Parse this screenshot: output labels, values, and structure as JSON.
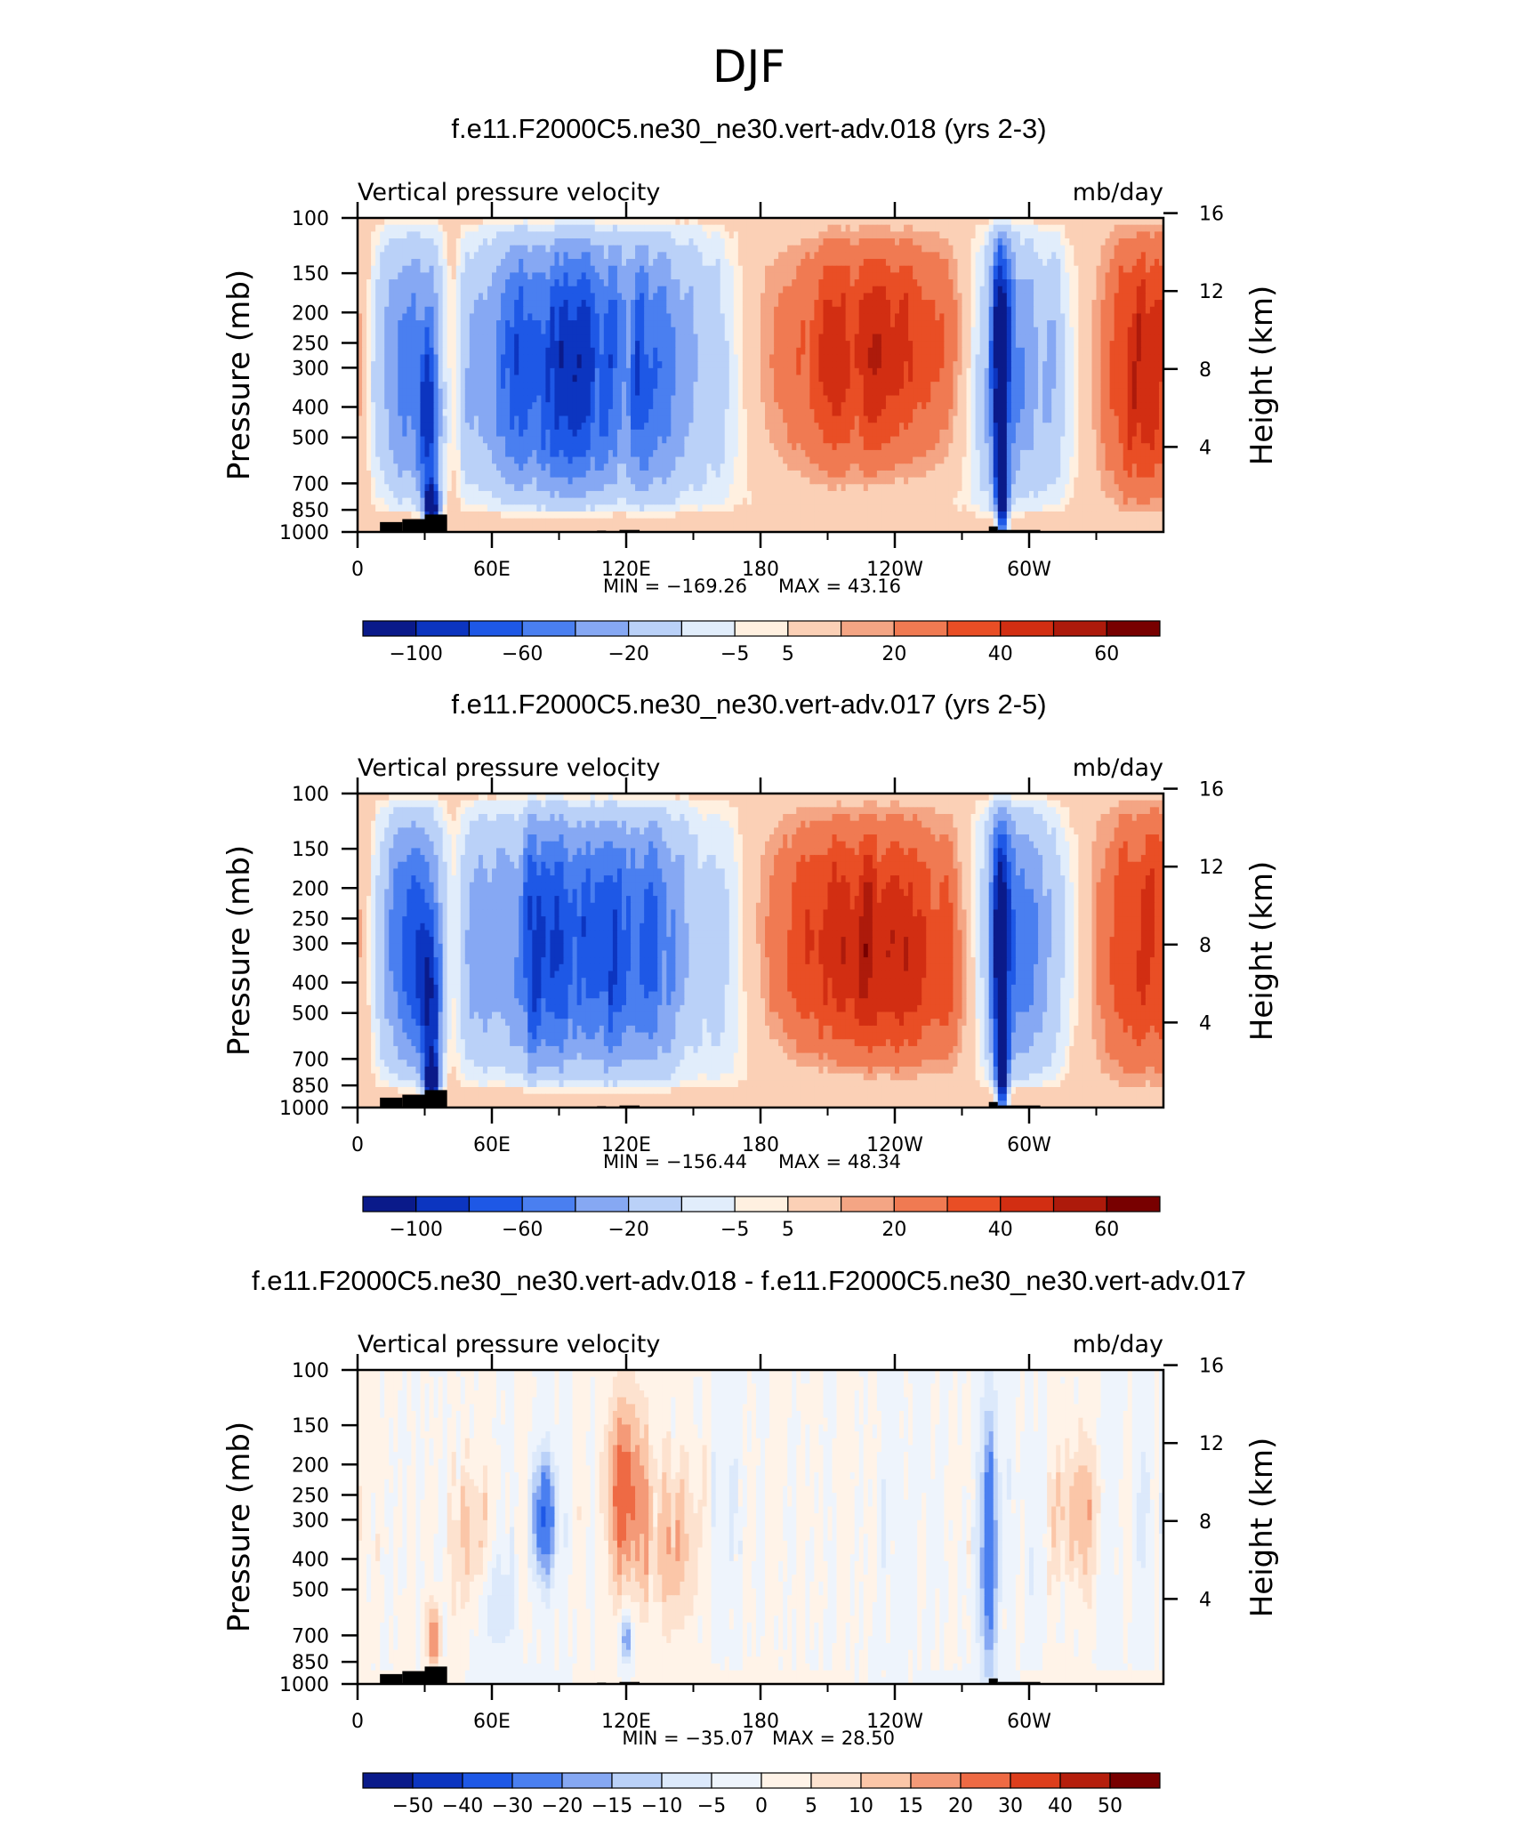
{
  "figure_title": "DJF",
  "chart_data": [
    {
      "type": "heatmap",
      "title": "f.e11.F2000C5.ne30_ne30.vert-adv.018 (yrs 2-3)",
      "subtitle_left": "Vertical pressure velocity",
      "subtitle_right": "mb/day",
      "ylabel": "Pressure (mb)",
      "ylabel_right": "Height (km)",
      "x_tick_labels": [
        "0",
        "60E",
        "120E",
        "180",
        "120W",
        "60W"
      ],
      "x_tick_lons": [
        0,
        60,
        120,
        180,
        240,
        300
      ],
      "y_ticks": [
        "100",
        "150",
        "200",
        "250",
        "300",
        "400",
        "500",
        "700",
        "850",
        "1000"
      ],
      "y_right_ticks": [
        "16",
        "12",
        "8",
        "4"
      ],
      "y_log_scale": true,
      "min_label": "MIN = −169.26",
      "max_label": "MAX = 43.16",
      "colorbar_labels": [
        "−100",
        "−60",
        "−20",
        "−5",
        "5",
        "20",
        "40",
        "60"
      ],
      "colorbar_colors": [
        "#0a1a8a",
        "#0c35c0",
        "#1e58e6",
        "#4a7ff0",
        "#86a8f3",
        "#bad1f8",
        "#e1edfb",
        "#fff0e0",
        "#fbd0b6",
        "#f4a584",
        "#f07a52",
        "#e94e25",
        "#d22e12",
        "#ad1a0b",
        "#780000"
      ]
    },
    {
      "type": "heatmap",
      "title": "f.e11.F2000C5.ne30_ne30.vert-adv.017 (yrs 2-5)",
      "subtitle_left": "Vertical pressure velocity",
      "subtitle_right": "mb/day",
      "ylabel": "Pressure (mb)",
      "ylabel_right": "Height (km)",
      "x_tick_labels": [
        "0",
        "60E",
        "120E",
        "180",
        "120W",
        "60W"
      ],
      "x_tick_lons": [
        0,
        60,
        120,
        180,
        240,
        300
      ],
      "y_ticks": [
        "100",
        "150",
        "200",
        "250",
        "300",
        "400",
        "500",
        "700",
        "850",
        "1000"
      ],
      "y_right_ticks": [
        "16",
        "12",
        "8",
        "4"
      ],
      "y_log_scale": true,
      "min_label": "MIN = −156.44",
      "max_label": "MAX = 48.34",
      "colorbar_labels": [
        "−100",
        "−60",
        "−20",
        "−5",
        "5",
        "20",
        "40",
        "60"
      ],
      "colorbar_colors": [
        "#0a1a8a",
        "#0c35c0",
        "#1e58e6",
        "#4a7ff0",
        "#86a8f3",
        "#bad1f8",
        "#e1edfb",
        "#fff0e0",
        "#fbd0b6",
        "#f4a584",
        "#f07a52",
        "#e94e25",
        "#d22e12",
        "#ad1a0b",
        "#780000"
      ]
    },
    {
      "type": "heatmap",
      "title": "f.e11.F2000C5.ne30_ne30.vert-adv.018 - f.e11.F2000C5.ne30_ne30.vert-adv.017",
      "subtitle_left": "Vertical pressure velocity",
      "subtitle_right": "mb/day",
      "ylabel": "Pressure (mb)",
      "ylabel_right": "Height (km)",
      "x_tick_labels": [
        "0",
        "60E",
        "120E",
        "180",
        "120W",
        "60W"
      ],
      "x_tick_lons": [
        0,
        60,
        120,
        180,
        240,
        300
      ],
      "y_ticks": [
        "100",
        "150",
        "200",
        "250",
        "300",
        "400",
        "500",
        "700",
        "850",
        "1000"
      ],
      "y_right_ticks": [
        "16",
        "12",
        "8",
        "4"
      ],
      "y_log_scale": true,
      "min_label": "MIN = −35.07",
      "max_label": "MAX = 28.50",
      "colorbar_labels": [
        "−50",
        "−40",
        "−30",
        "−20",
        "−15",
        "−10",
        "−5",
        "0",
        "5",
        "10",
        "15",
        "20",
        "30",
        "40",
        "50"
      ],
      "colorbar_colors": [
        "#0a1a8a",
        "#0c35c0",
        "#1e58e6",
        "#4a7ff0",
        "#86a8f3",
        "#bad1f8",
        "#dce9fb",
        "#eef4fc",
        "#fff3e8",
        "#fde2cf",
        "#fbc6a8",
        "#f49a78",
        "#ee6a44",
        "#de3e1c",
        "#b51e0c",
        "#780000"
      ]
    }
  ]
}
